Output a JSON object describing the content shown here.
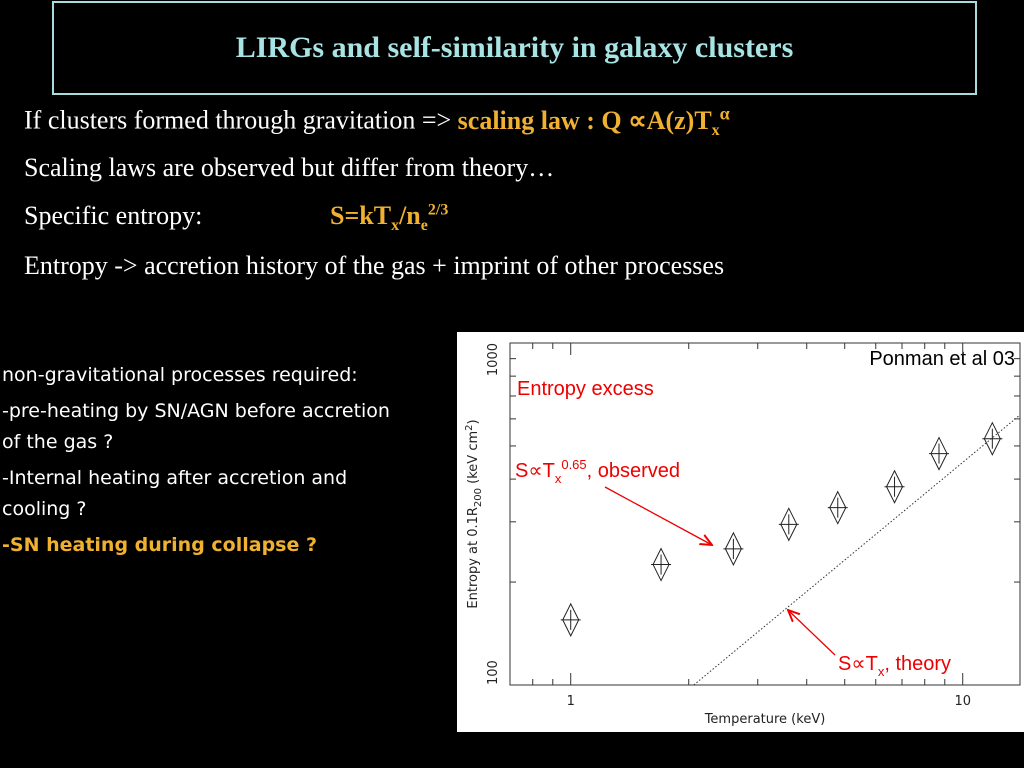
{
  "title": "LIRGs and self-similarity in galaxy clusters",
  "bullets": [
    {
      "text": "If clusters formed through gravitation => ",
      "formula": "scaling law : Q ∝A(z)T",
      "sub": "x",
      "sup": "α"
    },
    {
      "text": "Scaling laws are observed but differ from theory…"
    },
    {
      "text": "Specific entropy:",
      "formula": "S=kT",
      "sub": "x",
      "formula2": "/n",
      "sub2": "e",
      "sup2": "2/3"
    },
    {
      "text": "Entropy -> accretion history of the gas + imprint of other processes"
    }
  ],
  "side_notes": [
    "non-gravitational processes required:",
    "-pre-heating by SN/AGN before accretion of the gas ?",
    "-Internal heating after accretion and cooling ?",
    "-SN heating during collapse ?"
  ],
  "chart_data": {
    "type": "scatter",
    "log_x": true,
    "log_y": true,
    "x_label": "Temperature (keV)",
    "y_label": {
      "main": "Entropy at 0.1R",
      "sub": "200",
      "unit": " (keV cm",
      "sup": "2",
      "close": ")"
    },
    "xlim": [
      0.7,
      14
    ],
    "ylim": [
      100,
      1000
    ],
    "xticks": [
      1,
      10
    ],
    "yticks": [
      100,
      1000
    ],
    "xminor": [
      0.8,
      0.9,
      2,
      3,
      4,
      5,
      6,
      7,
      8,
      9
    ],
    "yminor": [
      200,
      300,
      400,
      500,
      600,
      700,
      800,
      900
    ],
    "x": [
      1.0,
      1.7,
      2.6,
      3.6,
      4.8,
      6.7,
      8.7,
      11.9
    ],
    "values": [
      155,
      225,
      250,
      295,
      330,
      380,
      475,
      525
    ],
    "theory_line": {
      "x": [
        2.06,
        14
      ],
      "values": [
        100,
        616
      ]
    },
    "annotations": {
      "source": "Ponman et al 03",
      "excess": "Entropy excess",
      "observed": {
        "main": "S∝T",
        "sub": "x",
        "sup": "0.65",
        "rest": ", observed"
      },
      "theory": {
        "main": "S∝T",
        "sub": "x",
        "rest": ", theory"
      }
    }
  }
}
